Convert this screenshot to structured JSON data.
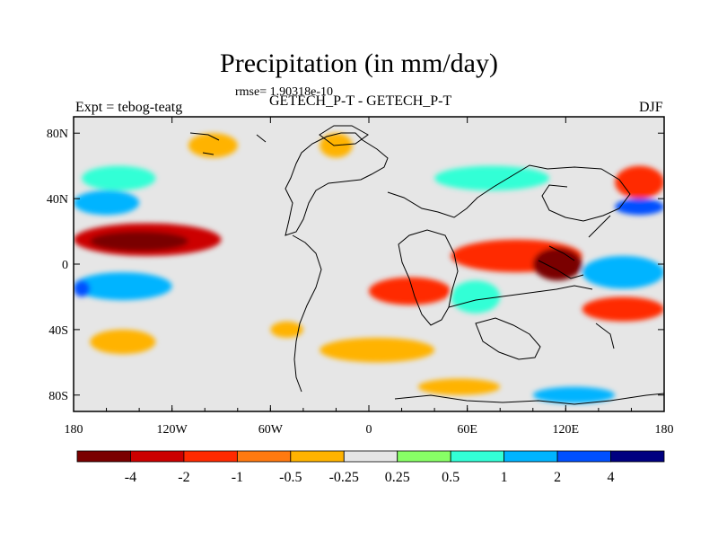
{
  "header": {
    "title": "Precipitation (in mm/day)",
    "rmse": "rmse= 1.90318e-10",
    "experiment": "Expt = tebog-teatg",
    "subtitle": "GETECH_P-T - GETECH_P-T",
    "season": "DJF"
  },
  "chart_data": {
    "type": "heatmap",
    "title": "Precipitation (in mm/day)",
    "variable": "Precipitation difference",
    "units": "mm/day",
    "xlim": [
      -180,
      180
    ],
    "ylim": [
      -90,
      90
    ],
    "x_ticks": [
      {
        "value": -180,
        "label": "180"
      },
      {
        "value": -120,
        "label": "120W"
      },
      {
        "value": -60,
        "label": "60W"
      },
      {
        "value": 0,
        "label": "0"
      },
      {
        "value": 60,
        "label": "60E"
      },
      {
        "value": 120,
        "label": "120E"
      },
      {
        "value": 180,
        "label": "180"
      }
    ],
    "y_ticks": [
      {
        "value": 80,
        "label": "80N"
      },
      {
        "value": 40,
        "label": "40N"
      },
      {
        "value": 0,
        "label": "0"
      },
      {
        "value": -40,
        "label": "40S"
      },
      {
        "value": -80,
        "label": "80S"
      }
    ],
    "contour_levels": [
      -4,
      -2,
      -1,
      -0.5,
      -0.25,
      0.25,
      0.5,
      1,
      2,
      4
    ],
    "colorbar_labels": [
      "-4",
      "-2",
      "-1",
      "-0.5",
      "-0.25",
      "0.25",
      "0.5",
      "1",
      "2",
      "4"
    ],
    "colorbar_colors": [
      "#7a0000",
      "#cc0000",
      "#ff2a00",
      "#ff7a10",
      "#ffb300",
      "#e6e6e6",
      "#88ff66",
      "#33ffd6",
      "#00b4ff",
      "#0050ff",
      "#000080"
    ],
    "background_color": "#e6e6e6",
    "anomaly_regions": [
      {
        "name": "eastern-pacific-band",
        "lon": [
          -180,
          -90
        ],
        "lat": [
          5,
          25
        ],
        "value": -3
      },
      {
        "name": "eastern-pacific-band-core",
        "lon": [
          -170,
          -110
        ],
        "lat": [
          8,
          20
        ],
        "value": -5
      },
      {
        "name": "equatorial-pacific-blue",
        "lon": [
          -180,
          -120
        ],
        "lat": [
          -22,
          -5
        ],
        "value": 1.5
      },
      {
        "name": "equatorial-pacific-deep",
        "lon": [
          -180,
          -170
        ],
        "lat": [
          -20,
          -10
        ],
        "value": 3
      },
      {
        "name": "north-pacific-blue",
        "lon": [
          -180,
          -140
        ],
        "lat": [
          30,
          45
        ],
        "value": 1.5
      },
      {
        "name": "north-pacific-green",
        "lon": [
          -175,
          -130
        ],
        "lat": [
          45,
          60
        ],
        "value": 0.7
      },
      {
        "name": "arctic-orange",
        "lon": [
          -110,
          -80
        ],
        "lat": [
          65,
          80
        ],
        "value": -0.5
      },
      {
        "name": "greenland-orange",
        "lon": [
          -30,
          -10
        ],
        "lat": [
          65,
          80
        ],
        "value": -0.5
      },
      {
        "name": "south-pacific-orange",
        "lon": [
          -170,
          -130
        ],
        "lat": [
          -55,
          -40
        ],
        "value": -0.3
      },
      {
        "name": "south-atlantic-orange",
        "lon": [
          -60,
          -40
        ],
        "lat": [
          -45,
          -35
        ],
        "value": -0.3
      },
      {
        "name": "africa-red",
        "lon": [
          0,
          50
        ],
        "lat": [
          -25,
          -8
        ],
        "value": -1.5
      },
      {
        "name": "africa-green",
        "lon": [
          50,
          80
        ],
        "lat": [
          -30,
          -10
        ],
        "value": 0.7
      },
      {
        "name": "indian-ocean-red",
        "lon": [
          50,
          130
        ],
        "lat": [
          -5,
          15
        ],
        "value": -2
      },
      {
        "name": "maritime-core",
        "lon": [
          100,
          130
        ],
        "lat": [
          -10,
          10
        ],
        "value": -5
      },
      {
        "name": "west-pacific-cyan",
        "lon": [
          130,
          180
        ],
        "lat": [
          -15,
          5
        ],
        "value": 1.5
      },
      {
        "name": "west-pacific-red",
        "lon": [
          130,
          180
        ],
        "lat": [
          -35,
          -20
        ],
        "value": -1.5
      },
      {
        "name": "north-west-pacific-red",
        "lon": [
          150,
          180
        ],
        "lat": [
          40,
          60
        ],
        "value": -2
      },
      {
        "name": "north-west-pacific-blue",
        "lon": [
          150,
          180
        ],
        "lat": [
          30,
          40
        ],
        "value": 2
      },
      {
        "name": "asia-green",
        "lon": [
          40,
          110
        ],
        "lat": [
          45,
          60
        ],
        "value": 0.7
      },
      {
        "name": "subpolar-orange",
        "lon": [
          -30,
          40
        ],
        "lat": [
          -60,
          -45
        ],
        "value": -0.5
      },
      {
        "name": "southern-cyan",
        "lon": [
          100,
          150
        ],
        "lat": [
          -85,
          -75
        ],
        "value": 1.5
      },
      {
        "name": "southern-orange",
        "lon": [
          30,
          80
        ],
        "lat": [
          -80,
          -70
        ],
        "value": -0.5
      }
    ]
  }
}
